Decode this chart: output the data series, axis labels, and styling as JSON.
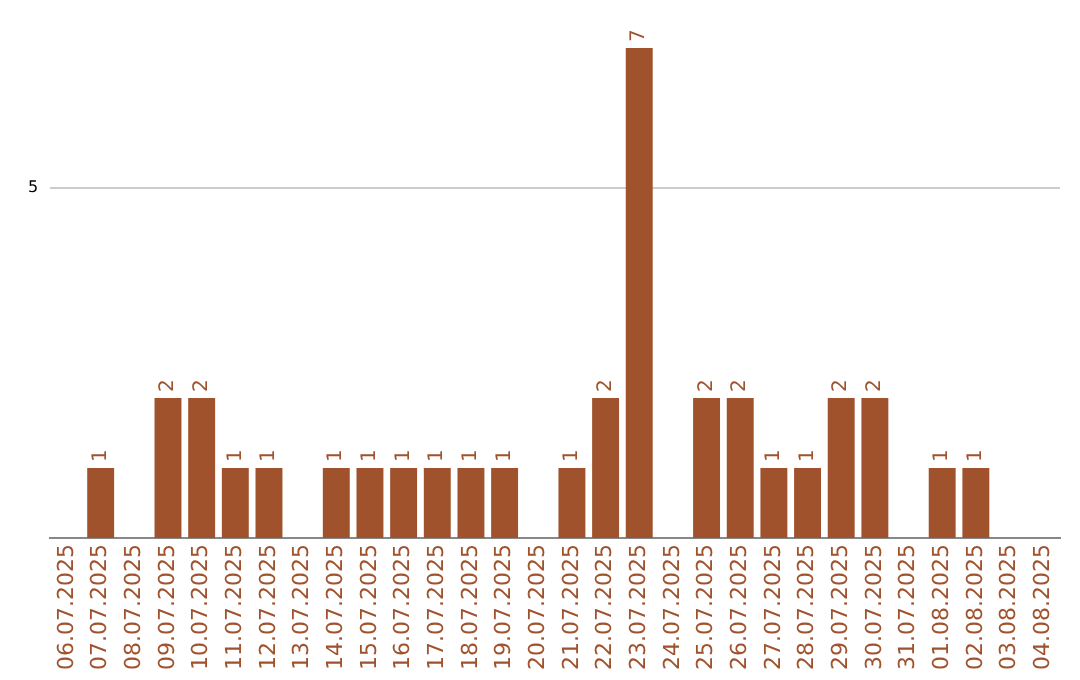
{
  "chart_data": {
    "type": "bar",
    "categories": [
      "06.07.2025",
      "07.07.2025",
      "08.07.2025",
      "09.07.2025",
      "10.07.2025",
      "11.07.2025",
      "12.07.2025",
      "13.07.2025",
      "14.07.2025",
      "15.07.2025",
      "16.07.2025",
      "17.07.2025",
      "18.07.2025",
      "19.07.2025",
      "20.07.2025",
      "21.07.2025",
      "22.07.2025",
      "23.07.2025",
      "24.07.2025",
      "25.07.2025",
      "26.07.2025",
      "27.07.2025",
      "28.07.2025",
      "29.07.2025",
      "30.07.2025",
      "31.07.2025",
      "01.08.2025",
      "02.08.2025",
      "03.08.2025",
      "04.08.2025"
    ],
    "values": [
      0,
      1,
      0,
      2,
      2,
      1,
      1,
      0,
      1,
      1,
      1,
      1,
      1,
      1,
      0,
      1,
      2,
      7,
      0,
      2,
      2,
      1,
      1,
      2,
      2,
      0,
      1,
      1,
      0,
      0
    ],
    "value_labels": [
      null,
      "1",
      null,
      "2",
      "2",
      "1",
      "1",
      null,
      "1",
      "1",
      "1",
      "1",
      "1",
      "1",
      null,
      "1",
      "2",
      "7",
      null,
      "2",
      "2",
      "1",
      "1",
      "2",
      "2",
      null,
      "1",
      "1",
      null,
      null
    ],
    "color": "#a0522d",
    "ylim": [
      0,
      7
    ],
    "yticks": [
      5
    ],
    "grid": "y",
    "legend": false
  }
}
